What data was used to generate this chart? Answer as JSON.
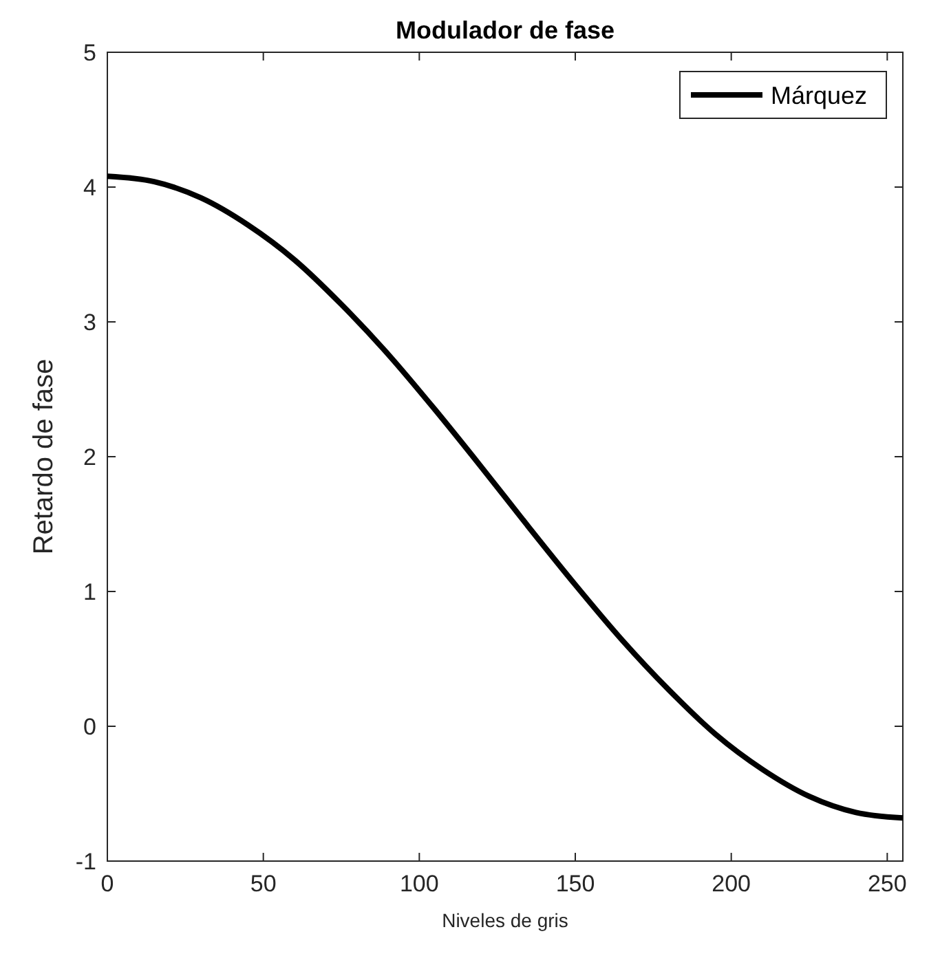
{
  "chart_data": {
    "type": "line",
    "title": "Modulador de fase",
    "xlabel": "Niveles de gris",
    "ylabel": "Retardo de fase",
    "xlim": [
      0,
      255
    ],
    "xticks": [
      0,
      50,
      100,
      150,
      200,
      250
    ],
    "ylim": [
      -1,
      5
    ],
    "yticks": [
      -1,
      0,
      1,
      2,
      3,
      4,
      5
    ],
    "legend": "top right",
    "grid": false,
    "marker": "none",
    "line_style": "solid",
    "series": [
      {
        "name": "Márquez",
        "color": "#000000",
        "x": [
          0,
          15,
          30,
          45,
          60,
          75,
          90,
          105,
          120,
          135,
          150,
          165,
          180,
          195,
          210,
          225,
          240,
          255
        ],
        "values": [
          4.08,
          4.04,
          3.92,
          3.72,
          3.46,
          3.13,
          2.76,
          2.35,
          1.92,
          1.48,
          1.05,
          0.64,
          0.27,
          -0.06,
          -0.32,
          -0.52,
          -0.64,
          -0.68
        ]
      }
    ]
  }
}
